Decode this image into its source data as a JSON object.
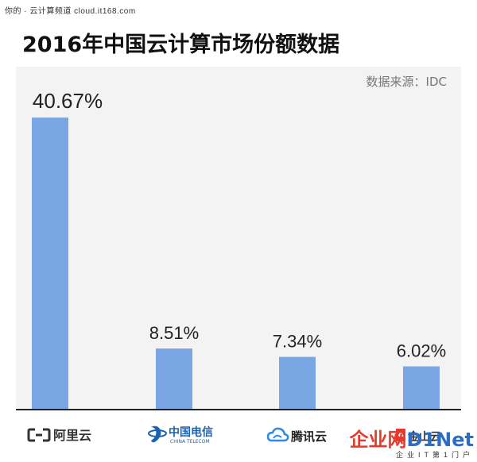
{
  "watermark_top": "你的 · 云计算频道 cloud.it168.com",
  "chart_data": {
    "type": "bar",
    "title": "2016年中国云计算市场份额数据",
    "source": "数据来源：IDC",
    "categories": [
      "阿里云",
      "中国电信",
      "腾讯云",
      "金山云"
    ],
    "values": [
      40.67,
      8.51,
      7.34,
      6.02
    ],
    "value_labels": [
      "40.67%",
      "8.51%",
      "7.34%",
      "6.02%"
    ],
    "ylim": [
      0,
      44
    ],
    "bar_color": "#7aa7e3",
    "grid": false,
    "legend": "none"
  },
  "logos": {
    "aliyun": {
      "label": "阿里云",
      "color": "#333333"
    },
    "telecom": {
      "label": "中国电信",
      "sub": "CHINA TELECOM",
      "color": "#1a63b3"
    },
    "tencent": {
      "label": "腾讯云",
      "color": "#2b8be6"
    },
    "kingsoft": {
      "label": "金山云",
      "color": "#e53a2d"
    }
  },
  "watermark_bottom": {
    "brand_a": "企业网",
    "brand_b": "D1Net",
    "tagline": "企业IT第1门户"
  }
}
